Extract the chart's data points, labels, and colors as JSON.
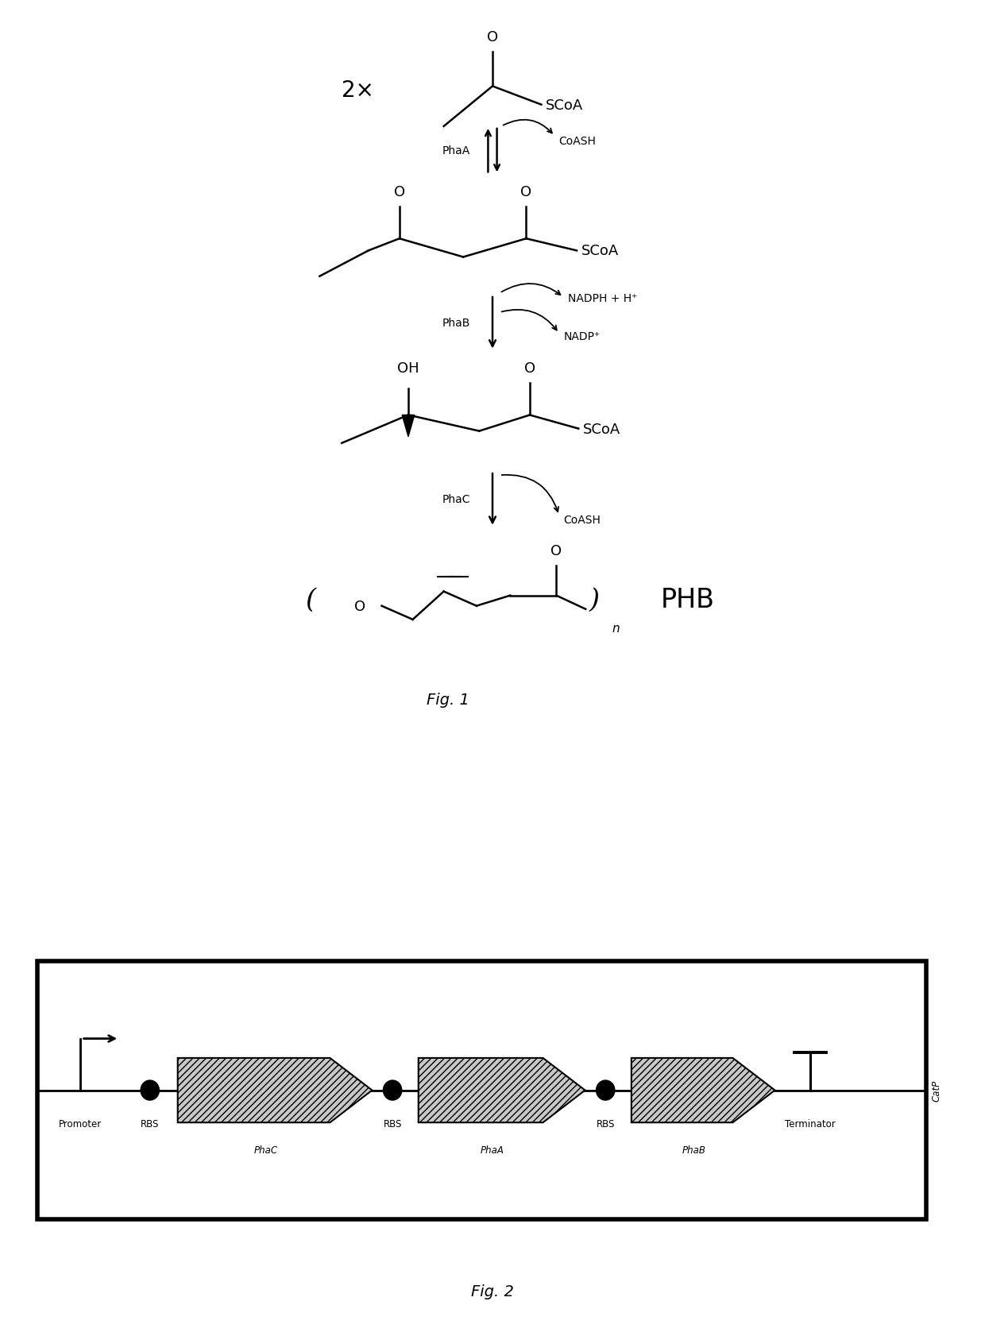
{
  "fig1_label": "Fig. 1",
  "fig2_label": "Fig. 2",
  "phb_label": "PHB",
  "background_color": "#ffffff",
  "text_color": "#000000",
  "enzyme_labels": [
    "PhaA",
    "PhaB",
    "PhaC"
  ],
  "cofactor_phaA": "CoASH",
  "cofactor_phaB_up": "NADPH + H⁺",
  "cofactor_phaB_down": "NADP⁺",
  "cofactor_phaC": "CoASH",
  "plasmid_elements": [
    "Promoter",
    "RBS",
    "RBS",
    "RBS",
    "Terminator"
  ],
  "gene_labels": [
    "PhaC",
    "PhaA",
    "PhaB"
  ],
  "plasmid_label": "CatP",
  "hatch_pattern": "////"
}
